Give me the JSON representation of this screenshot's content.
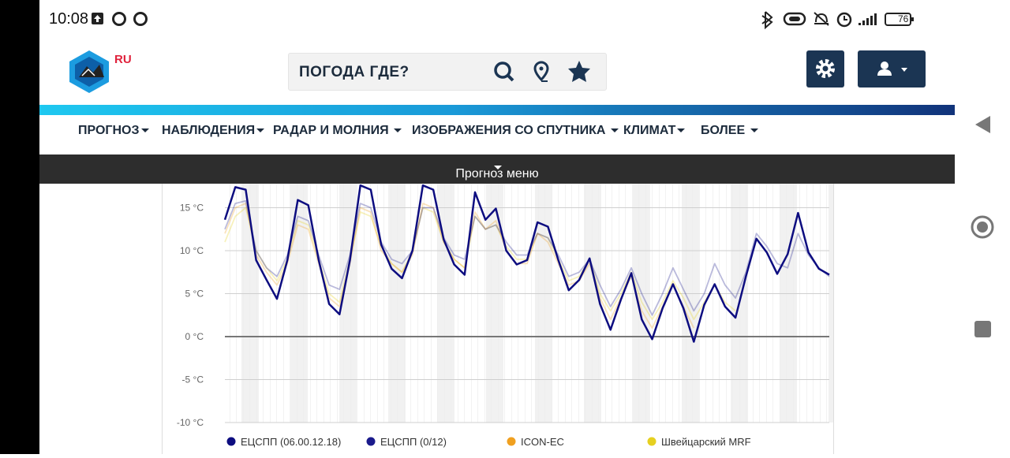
{
  "status": {
    "time": "10:08",
    "battery": "76"
  },
  "header": {
    "logo_text": "RU",
    "search_placeholder": "ПОГОДА ГДЕ?"
  },
  "nav": [
    "ПРОГНОЗ",
    "НАБЛЮДЕНИЯ",
    "РАДАР И МОЛНИЯ",
    "ИЗОБРАЖЕНИЯ СО СПУТНИКА",
    "КЛИМАТ",
    "БОЛЕЕ"
  ],
  "submenu": "Прогноз меню",
  "chart_data": {
    "type": "line",
    "ylim": [
      -10,
      17.8
    ],
    "yticks": [
      {
        "value": 15,
        "label": "15 °C"
      },
      {
        "value": 10,
        "label": "10 °C"
      },
      {
        "value": 5,
        "label": "5 °C"
      },
      {
        "value": 0,
        "label": "0 °C"
      },
      {
        "value": -5,
        "label": "-5 °C"
      },
      {
        "value": -10,
        "label": "-10 °C"
      }
    ],
    "grid": true,
    "legend": "bottom",
    "series": [
      {
        "name": "ЕЦСПП (06.00.12.18)",
        "color": "#0d0d80",
        "values": [
          13.6,
          17.4,
          17.1,
          8.9,
          6.6,
          4.4,
          8.9,
          15.9,
          15.3,
          8.9,
          3.8,
          2.6,
          8.9,
          17.6,
          17.1,
          10.7,
          7.9,
          6.8,
          10.0,
          17.6,
          17.1,
          11.3,
          8.4,
          7.2,
          16.8,
          13.6,
          14.9,
          10.0,
          8.4,
          8.9,
          13.3,
          12.8,
          8.9,
          5.4,
          6.6,
          9.1,
          3.8,
          0.8,
          4.3,
          7.4,
          2.0,
          -0.3,
          3.3,
          6.1,
          3.3,
          -0.6,
          3.7,
          6.1,
          3.5,
          2.2,
          7.0,
          11.4,
          9.8,
          7.3,
          9.6,
          14.4,
          9.8,
          7.9,
          7.2
        ]
      },
      {
        "name": "ЕЦСПП (0/12)",
        "color": "#1a1a8c",
        "values": [
          12.5,
          15.5,
          15.8,
          10,
          8,
          7,
          9.5,
          14,
          13.5,
          9.5,
          6,
          5.5,
          9.5,
          15.5,
          15,
          11,
          9,
          8.5,
          10,
          15,
          15,
          11.5,
          9.5,
          9,
          14,
          12.5,
          13,
          11,
          9.5,
          9.5,
          12,
          11.5,
          9.5,
          7,
          7.5,
          9,
          6,
          3.5,
          5.5,
          8,
          5,
          2.5,
          5,
          8,
          5.5,
          3,
          5,
          8.5,
          6,
          4.5,
          7.5,
          12,
          10.5,
          8.5,
          8,
          12,
          9.5,
          8,
          7
        ]
      },
      {
        "name": "ICON-EC",
        "color": "#f0a020",
        "values": [
          12,
          15,
          15.5,
          9.5,
          7.5,
          6,
          8.5,
          13,
          12.5,
          8.5,
          4.5,
          3.5,
          8.5,
          15,
          14.5,
          10,
          8.5,
          7.5,
          9.5,
          15.5,
          15,
          11,
          9,
          8,
          14.5,
          12.5,
          13.5,
          10,
          8.5,
          8.5,
          12,
          11,
          8.5,
          6,
          6.5,
          8.5,
          4.5,
          2,
          4.5,
          7,
          3,
          1,
          3.5,
          6,
          3.5,
          1,
          null,
          null,
          null,
          null,
          null,
          null,
          null,
          null,
          null,
          null,
          null,
          null,
          null
        ]
      },
      {
        "name": "Швейцарский MRF",
        "color": "#e6d020",
        "values": [
          11,
          14,
          15,
          10,
          8,
          6.5,
          9,
          13.5,
          13,
          9,
          5,
          4,
          9,
          14.5,
          14,
          10.5,
          8.5,
          7.5,
          10,
          15,
          14.5,
          11,
          9,
          8,
          14,
          12.5,
          13,
          10.5,
          9,
          9,
          12,
          11.5,
          9,
          6.5,
          7,
          9,
          5,
          3,
          5,
          7.5,
          4,
          2,
          4,
          6.5,
          4.5,
          2,
          4,
          6,
          4,
          3,
          null,
          null,
          null,
          null,
          null,
          null,
          null,
          null,
          null
        ]
      }
    ]
  }
}
